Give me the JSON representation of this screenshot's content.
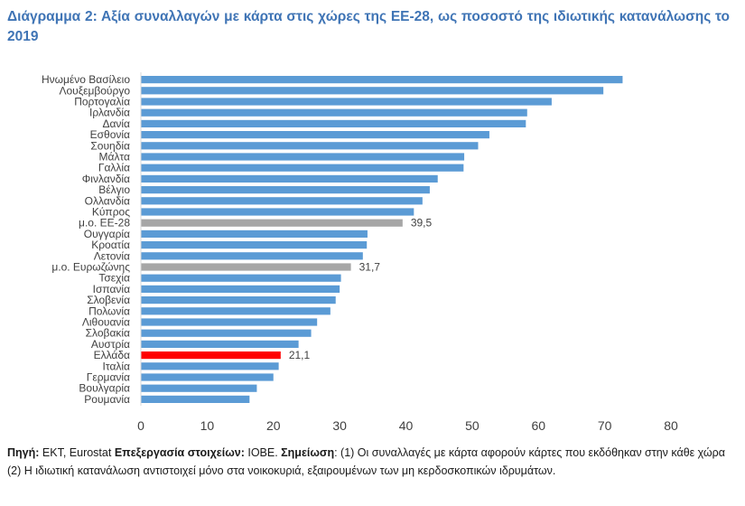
{
  "chart_data": {
    "type": "bar",
    "orientation": "horizontal",
    "title": "Διάγραμμα 2: Αξία συναλλαγών με κάρτα στις χώρες της ΕΕ-28, ως ποσοστό της ιδιωτικής κατανάλωσης το 2019",
    "xlim": [
      0,
      80
    ],
    "xticks": [
      0,
      10,
      20,
      30,
      40,
      50,
      60,
      70,
      80
    ],
    "grid": false,
    "colors": {
      "default": "#5b9bd5",
      "average": "#a6a6a6",
      "highlight": "#ff0000"
    },
    "bars": [
      {
        "category": "Ηνωμένο Βασίλειο",
        "value": 72.7,
        "kind": "default",
        "label": ""
      },
      {
        "category": "Λουξεμβούργο",
        "value": 69.8,
        "kind": "default",
        "label": ""
      },
      {
        "category": "Πορτογαλία",
        "value": 62.0,
        "kind": "default",
        "label": ""
      },
      {
        "category": "Ιρλανδία",
        "value": 58.3,
        "kind": "default",
        "label": ""
      },
      {
        "category": "Δανία",
        "value": 58.1,
        "kind": "default",
        "label": ""
      },
      {
        "category": "Εσθονία",
        "value": 52.6,
        "kind": "default",
        "label": ""
      },
      {
        "category": "Σουηδία",
        "value": 50.9,
        "kind": "default",
        "label": ""
      },
      {
        "category": "Μάλτα",
        "value": 48.8,
        "kind": "default",
        "label": ""
      },
      {
        "category": "Γαλλία",
        "value": 48.7,
        "kind": "default",
        "label": ""
      },
      {
        "category": "Φινλανδία",
        "value": 44.8,
        "kind": "default",
        "label": ""
      },
      {
        "category": "Βέλγιο",
        "value": 43.6,
        "kind": "default",
        "label": ""
      },
      {
        "category": "Ολλανδία",
        "value": 42.5,
        "kind": "default",
        "label": ""
      },
      {
        "category": "Κύπρος",
        "value": 41.2,
        "kind": "default",
        "label": ""
      },
      {
        "category": "μ.ο. ΕΕ-28",
        "value": 39.5,
        "kind": "average",
        "label": "39,5"
      },
      {
        "category": "Ουγγαρία",
        "value": 34.2,
        "kind": "default",
        "label": ""
      },
      {
        "category": "Κροατία",
        "value": 34.1,
        "kind": "default",
        "label": ""
      },
      {
        "category": "Λετονία",
        "value": 33.5,
        "kind": "default",
        "label": ""
      },
      {
        "category": "μ.ο. Ευρωζώνης",
        "value": 31.7,
        "kind": "average",
        "label": "31,7"
      },
      {
        "category": "Τσεχία",
        "value": 30.2,
        "kind": "default",
        "label": ""
      },
      {
        "category": "Ισπανία",
        "value": 30.0,
        "kind": "default",
        "label": ""
      },
      {
        "category": "Σλοβενία",
        "value": 29.4,
        "kind": "default",
        "label": ""
      },
      {
        "category": "Πολωνία",
        "value": 28.6,
        "kind": "default",
        "label": ""
      },
      {
        "category": "Λιθουανία",
        "value": 26.6,
        "kind": "default",
        "label": ""
      },
      {
        "category": "Σλοβακία",
        "value": 25.7,
        "kind": "default",
        "label": ""
      },
      {
        "category": "Αυστρία",
        "value": 23.8,
        "kind": "default",
        "label": ""
      },
      {
        "category": "Ελλάδα",
        "value": 21.1,
        "kind": "highlight",
        "label": "21,1"
      },
      {
        "category": "Ιταλία",
        "value": 20.8,
        "kind": "default",
        "label": ""
      },
      {
        "category": "Γερμανία",
        "value": 20.0,
        "kind": "default",
        "label": ""
      },
      {
        "category": "Βουλγαρία",
        "value": 17.5,
        "kind": "default",
        "label": ""
      },
      {
        "category": "Ρουμανία",
        "value": 16.4,
        "kind": "default",
        "label": ""
      }
    ]
  },
  "footnote": {
    "source_label": "Πηγή:",
    "source_text": " ΕΚΤ, Eurostat ",
    "processing_label": "Επεξεργασία στοιχείων:",
    "processing_text": " ΙΟΒΕ. ",
    "note_label": "Σημείωση",
    "note_text": ": (1) Οι συναλλαγές με κάρτα αφορούν κάρτες που εκδόθηκαν στην κάθε χώρα (2) Η ιδιωτική κατανάλωση αντιστοιχεί μόνο στα νοικοκυριά, εξαιρουμένων των μη κερδοσκοπικών ιδρυμάτων."
  }
}
